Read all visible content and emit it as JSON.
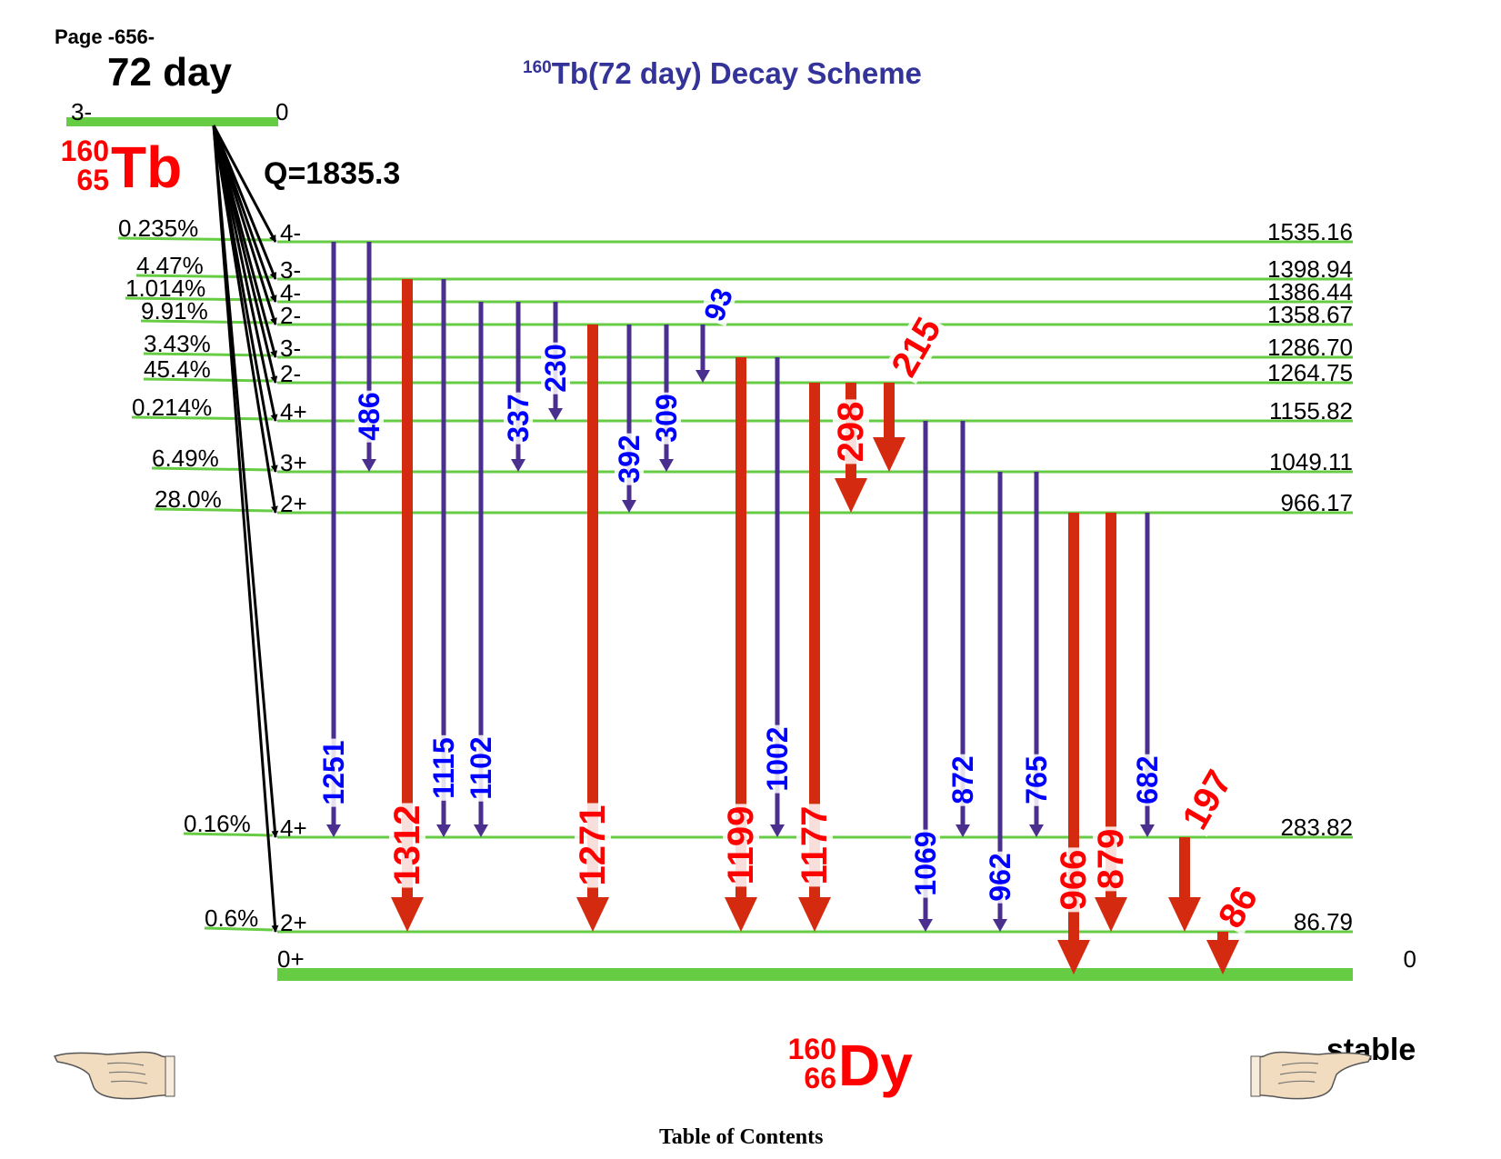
{
  "page_label": "Page -656-",
  "half_life": "72 day",
  "title": {
    "sup": "160",
    "text": "Tb(72 day) Decay Scheme"
  },
  "parent": {
    "spin": "3-",
    "energy": "0",
    "mass_number": "160",
    "atomic_number": "65",
    "symbol": "Tb"
  },
  "q_value": "Q=1835.3",
  "daughter": {
    "spin": "0+",
    "energy": "0",
    "mass_number": "160",
    "atomic_number": "66",
    "symbol": "Dy",
    "status": "stable"
  },
  "footer": {
    "toc": "Table of Contents"
  },
  "colors": {
    "level": "#66cc44",
    "weak_gamma": "#4a2f8e",
    "strong_gamma": "#d42a10",
    "weak_label": "#0000ff",
    "strong_label": "#ff0000",
    "title": "#333399",
    "nuclide": "#ff0000"
  },
  "levels": [
    {
      "energy": "1535.16",
      "spin": "4-",
      "branch": "0.235%"
    },
    {
      "energy": "1398.94",
      "spin": "3-",
      "branch": "4.47%"
    },
    {
      "energy": "1386.44",
      "spin": "4-",
      "branch": "1.014%"
    },
    {
      "energy": "1358.67",
      "spin": "2-",
      "branch": "9.91%"
    },
    {
      "energy": "1286.70",
      "spin": "3-",
      "branch": "3.43%"
    },
    {
      "energy": "1264.75",
      "spin": "2-",
      "branch": "45.4%"
    },
    {
      "energy": "1155.82",
      "spin": "4+",
      "branch": "0.214%"
    },
    {
      "energy": "1049.11",
      "spin": "3+",
      "branch": "6.49%"
    },
    {
      "energy": "966.17",
      "spin": "2+",
      "branch": "28.0%"
    },
    {
      "energy": "283.82",
      "spin": "4+",
      "branch": "0.16%"
    },
    {
      "energy": "86.79",
      "spin": "2+",
      "branch": "0.6%"
    }
  ],
  "gammas": [
    {
      "label": "1251",
      "from": "1535.16",
      "to": "283.82",
      "strong": false
    },
    {
      "label": "486",
      "from": "1535.16",
      "to": "1049.11",
      "strong": false
    },
    {
      "label": "1312",
      "from": "1398.94",
      "to": "86.79",
      "strong": true
    },
    {
      "label": "1115",
      "from": "1398.94",
      "to": "283.82",
      "strong": false
    },
    {
      "label": "1102",
      "from": "1386.44",
      "to": "283.82",
      "strong": false
    },
    {
      "label": "337",
      "from": "1386.44",
      "to": "1049.11",
      "strong": false
    },
    {
      "label": "230",
      "from": "1386.44",
      "to": "1155.82",
      "strong": false
    },
    {
      "label": "1271",
      "from": "1358.67",
      "to": "86.79",
      "strong": true
    },
    {
      "label": "392",
      "from": "1358.67",
      "to": "966.17",
      "strong": false
    },
    {
      "label": "309",
      "from": "1358.67",
      "to": "1049.11",
      "strong": false
    },
    {
      "label": "93",
      "from": "1358.67",
      "to": "1264.75",
      "strong": false
    },
    {
      "label": "1199",
      "from": "1286.70",
      "to": "86.79",
      "strong": true
    },
    {
      "label": "1002",
      "from": "1286.70",
      "to": "283.82",
      "strong": false
    },
    {
      "label": "1177",
      "from": "1264.75",
      "to": "86.79",
      "strong": true
    },
    {
      "label": "298",
      "from": "1264.75",
      "to": "966.17",
      "strong": true
    },
    {
      "label": "215",
      "from": "1264.75",
      "to": "1049.11",
      "strong": true
    },
    {
      "label": "1069",
      "from": "1155.82",
      "to": "86.79",
      "strong": false
    },
    {
      "label": "872",
      "from": "1155.82",
      "to": "283.82",
      "strong": false
    },
    {
      "label": "962",
      "from": "1049.11",
      "to": "86.79",
      "strong": false
    },
    {
      "label": "765",
      "from": "1049.11",
      "to": "283.82",
      "strong": false
    },
    {
      "label": "966",
      "from": "966.17",
      "to": "0",
      "strong": true
    },
    {
      "label": "879",
      "from": "966.17",
      "to": "86.79",
      "strong": true
    },
    {
      "label": "682",
      "from": "966.17",
      "to": "283.82",
      "strong": false
    },
    {
      "label": "197",
      "from": "283.82",
      "to": "86.79",
      "strong": true
    },
    {
      "label": "86",
      "from": "86.79",
      "to": "0",
      "strong": true
    }
  ]
}
